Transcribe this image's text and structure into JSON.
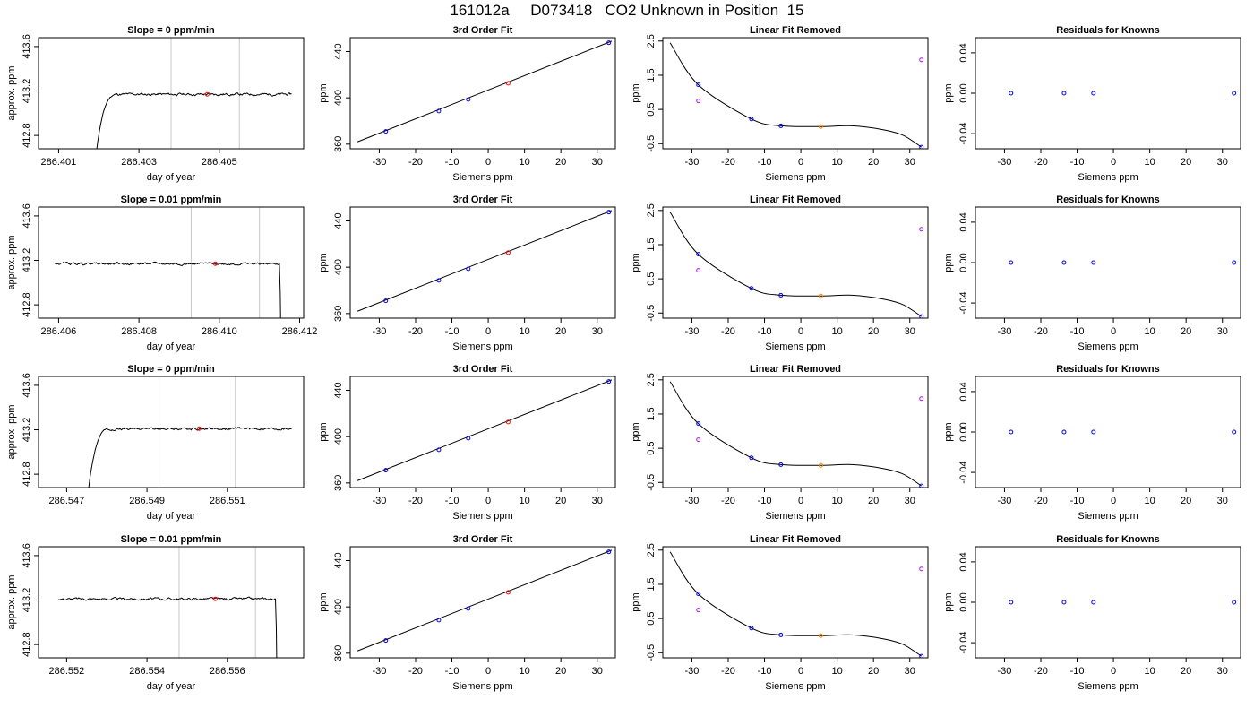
{
  "page_title": "161012a     D073418   CO2 Unknown in Position  15",
  "colors": {
    "trace": "#000000",
    "cursor": "#c8c8c8",
    "known": "#0000ff",
    "unknown": "#ff0000",
    "offset": "#ff8000",
    "excluded": "#a020f0"
  },
  "chart_data": [
    {
      "type": "line",
      "title": "Slope =  0  ppm/min",
      "xlabel": "day of year",
      "ylabel": "approx. ppm",
      "xlim": [
        286.4005,
        286.4071
      ],
      "ylim": [
        412.68,
        413.68
      ],
      "xticks": [
        "286.401",
        "286.403",
        "286.405"
      ],
      "yticks": [
        "412.8",
        "413.2",
        "413.6"
      ],
      "cursor_lines": [
        286.4038,
        286.4055
      ],
      "profile": "rise",
      "rise_start": 286.4019,
      "curve_end": 286.4068,
      "plateau": 413.17,
      "noise": 0.012,
      "marker": {
        "x": 286.4047,
        "y": 413.17
      }
    },
    {
      "type": "scatter",
      "title": "3rd Order Fit",
      "xlabel": "Siemens ppm",
      "ylabel": "ppm",
      "xlim": [
        -38,
        35
      ],
      "ylim": [
        356,
        452
      ],
      "xticks": [
        "-30",
        "-20",
        "-10",
        "0",
        "10",
        "20",
        "30"
      ],
      "yticks": [
        "360",
        "400",
        "440"
      ],
      "fit": {
        "x0": -36,
        "x1": 34,
        "y0": 362,
        "y1": 449
      },
      "points": [
        {
          "x": -28.2,
          "y": 371,
          "c": "known"
        },
        {
          "x": -13.6,
          "y": 388.6,
          "c": "known"
        },
        {
          "x": -5.5,
          "y": 398.6,
          "c": "known"
        },
        {
          "x": 5.5,
          "y": 412.6,
          "c": "unknown"
        },
        {
          "x": 33.2,
          "y": 447.6,
          "c": "known"
        }
      ]
    },
    {
      "type": "scatter",
      "title": "Linear Fit Removed",
      "xlabel": "Siemens ppm",
      "ylabel": "ppm",
      "xlim": [
        -38,
        35
      ],
      "ylim": [
        -0.65,
        2.6
      ],
      "xticks": [
        "-30",
        "-20",
        "-10",
        "0",
        "10",
        "20",
        "30"
      ],
      "yticks": [
        "-0.5",
        "0.5",
        "1.5",
        "2.5"
      ],
      "curve": [
        {
          "x": -36,
          "y": 2.45
        },
        {
          "x": -28.2,
          "y": 1.22
        },
        {
          "x": -13.6,
          "y": 0.22
        },
        {
          "x": -5.5,
          "y": 0.02
        },
        {
          "x": 5.5,
          "y": 0.0
        },
        {
          "x": 14,
          "y": 0.02
        },
        {
          "x": 22,
          "y": -0.08
        },
        {
          "x": 28,
          "y": -0.25
        },
        {
          "x": 33.2,
          "y": -0.6
        }
      ],
      "points": [
        {
          "x": -28.2,
          "y": 1.22,
          "c": "known"
        },
        {
          "x": -28.2,
          "y": 0.75,
          "c": "excluded"
        },
        {
          "x": -13.6,
          "y": 0.22,
          "c": "known"
        },
        {
          "x": -5.5,
          "y": 0.02,
          "c": "known"
        },
        {
          "x": 5.5,
          "y": 0.0,
          "c": "offset"
        },
        {
          "x": 33.2,
          "y": 1.95,
          "c": "excluded"
        },
        {
          "x": 33.2,
          "y": -0.6,
          "c": "known"
        }
      ]
    },
    {
      "type": "scatter",
      "title": "Residuals for Knowns",
      "xlabel": "Siemens ppm",
      "ylabel": "ppm",
      "xlim": [
        -38,
        35
      ],
      "ylim": [
        -0.055,
        0.055
      ],
      "xticks": [
        "-30",
        "-20",
        "-10",
        "0",
        "10",
        "20",
        "30"
      ],
      "yticks": [
        "-0.04",
        "0.00",
        "0.04"
      ],
      "points": [
        {
          "x": -28.2,
          "y": 0.0,
          "c": "known"
        },
        {
          "x": -13.6,
          "y": 0.0,
          "c": "known"
        },
        {
          "x": -5.5,
          "y": 0.0,
          "c": "known"
        },
        {
          "x": 33.2,
          "y": 0.0,
          "c": "known"
        }
      ]
    },
    {
      "type": "line",
      "title": "Slope =  0.01  ppm/min",
      "xlabel": "day of year",
      "ylabel": "approx. ppm",
      "xlim": [
        286.4055,
        286.4121
      ],
      "ylim": [
        412.68,
        413.68
      ],
      "xticks": [
        "286.406",
        "286.408",
        "286.410",
        "286.412"
      ],
      "yticks": [
        "412.8",
        "413.2",
        "413.6"
      ],
      "cursor_lines": [
        286.4093,
        286.411
      ],
      "profile": "drop",
      "curve_start": 286.4059,
      "drop_start": 286.4115,
      "plateau": 413.17,
      "noise": 0.012,
      "marker": {
        "x": 286.4099,
        "y": 413.17
      }
    },
    {
      "type": "scatter",
      "title": "3rd Order Fit",
      "xlabel": "Siemens ppm",
      "ylabel": "ppm",
      "xlim": [
        -38,
        35
      ],
      "ylim": [
        356,
        452
      ],
      "xticks": [
        "-30",
        "-20",
        "-10",
        "0",
        "10",
        "20",
        "30"
      ],
      "yticks": [
        "360",
        "400",
        "440"
      ],
      "fit": {
        "x0": -36,
        "x1": 34,
        "y0": 362,
        "y1": 449
      },
      "points": [
        {
          "x": -28.2,
          "y": 371,
          "c": "known"
        },
        {
          "x": -13.6,
          "y": 388.6,
          "c": "known"
        },
        {
          "x": -5.5,
          "y": 398.6,
          "c": "known"
        },
        {
          "x": 5.5,
          "y": 412.6,
          "c": "unknown"
        },
        {
          "x": 33.2,
          "y": 447.6,
          "c": "known"
        }
      ]
    },
    {
      "type": "scatter",
      "title": "Linear Fit Removed",
      "xlabel": "Siemens ppm",
      "ylabel": "ppm",
      "xlim": [
        -38,
        35
      ],
      "ylim": [
        -0.65,
        2.6
      ],
      "xticks": [
        "-30",
        "-20",
        "-10",
        "0",
        "10",
        "20",
        "30"
      ],
      "yticks": [
        "-0.5",
        "0.5",
        "1.5",
        "2.5"
      ],
      "curve": [
        {
          "x": -36,
          "y": 2.45
        },
        {
          "x": -28.2,
          "y": 1.22
        },
        {
          "x": -13.6,
          "y": 0.22
        },
        {
          "x": -5.5,
          "y": 0.02
        },
        {
          "x": 5.5,
          "y": 0.0
        },
        {
          "x": 14,
          "y": 0.02
        },
        {
          "x": 22,
          "y": -0.08
        },
        {
          "x": 28,
          "y": -0.25
        },
        {
          "x": 33.2,
          "y": -0.6
        }
      ],
      "points": [
        {
          "x": -28.2,
          "y": 1.22,
          "c": "known"
        },
        {
          "x": -28.2,
          "y": 0.75,
          "c": "excluded"
        },
        {
          "x": -13.6,
          "y": 0.22,
          "c": "known"
        },
        {
          "x": -5.5,
          "y": 0.02,
          "c": "known"
        },
        {
          "x": 5.5,
          "y": 0.0,
          "c": "offset"
        },
        {
          "x": 33.2,
          "y": 1.95,
          "c": "excluded"
        },
        {
          "x": 33.2,
          "y": -0.6,
          "c": "known"
        }
      ]
    },
    {
      "type": "scatter",
      "title": "Residuals for Knowns",
      "xlabel": "Siemens ppm",
      "ylabel": "ppm",
      "xlim": [
        -38,
        35
      ],
      "ylim": [
        -0.055,
        0.055
      ],
      "xticks": [
        "-30",
        "-20",
        "-10",
        "0",
        "10",
        "20",
        "30"
      ],
      "yticks": [
        "-0.04",
        "0.00",
        "0.04"
      ],
      "points": [
        {
          "x": -28.2,
          "y": 0.0,
          "c": "known"
        },
        {
          "x": -13.6,
          "y": 0.0,
          "c": "known"
        },
        {
          "x": -5.5,
          "y": 0.0,
          "c": "known"
        },
        {
          "x": 33.2,
          "y": 0.0,
          "c": "known"
        }
      ]
    },
    {
      "type": "line",
      "title": "Slope =  0  ppm/min",
      "xlabel": "day of year",
      "ylabel": "approx. ppm",
      "xlim": [
        286.5463,
        286.5529
      ],
      "ylim": [
        412.68,
        413.68
      ],
      "xticks": [
        "286.547",
        "286.549",
        "286.551"
      ],
      "yticks": [
        "412.8",
        "413.2",
        "413.6"
      ],
      "cursor_lines": [
        286.5493,
        286.5512
      ],
      "profile": "rise",
      "rise_start": 286.5475,
      "curve_end": 286.5526,
      "plateau": 413.21,
      "noise": 0.012,
      "marker": {
        "x": 286.5503,
        "y": 413.21
      }
    },
    {
      "type": "scatter",
      "title": "3rd Order Fit",
      "xlabel": "Siemens ppm",
      "ylabel": "ppm",
      "xlim": [
        -38,
        35
      ],
      "ylim": [
        356,
        452
      ],
      "xticks": [
        "-30",
        "-20",
        "-10",
        "0",
        "10",
        "20",
        "30"
      ],
      "yticks": [
        "360",
        "400",
        "440"
      ],
      "fit": {
        "x0": -36,
        "x1": 34,
        "y0": 362,
        "y1": 449
      },
      "points": [
        {
          "x": -28.2,
          "y": 371,
          "c": "known"
        },
        {
          "x": -13.6,
          "y": 388.6,
          "c": "known"
        },
        {
          "x": -5.5,
          "y": 398.6,
          "c": "known"
        },
        {
          "x": 5.5,
          "y": 412.6,
          "c": "unknown"
        },
        {
          "x": 33.2,
          "y": 447.6,
          "c": "known"
        }
      ]
    },
    {
      "type": "scatter",
      "title": "Linear Fit Removed",
      "xlabel": "Siemens ppm",
      "ylabel": "ppm",
      "xlim": [
        -38,
        35
      ],
      "ylim": [
        -0.65,
        2.6
      ],
      "xticks": [
        "-30",
        "-20",
        "-10",
        "0",
        "10",
        "20",
        "30"
      ],
      "yticks": [
        "-0.5",
        "0.5",
        "1.5",
        "2.5"
      ],
      "curve": [
        {
          "x": -36,
          "y": 2.45
        },
        {
          "x": -28.2,
          "y": 1.22
        },
        {
          "x": -13.6,
          "y": 0.22
        },
        {
          "x": -5.5,
          "y": 0.02
        },
        {
          "x": 5.5,
          "y": 0.0
        },
        {
          "x": 14,
          "y": 0.02
        },
        {
          "x": 22,
          "y": -0.08
        },
        {
          "x": 28,
          "y": -0.25
        },
        {
          "x": 33.2,
          "y": -0.6
        }
      ],
      "points": [
        {
          "x": -28.2,
          "y": 1.22,
          "c": "known"
        },
        {
          "x": -28.2,
          "y": 0.75,
          "c": "excluded"
        },
        {
          "x": -13.6,
          "y": 0.22,
          "c": "known"
        },
        {
          "x": -5.5,
          "y": 0.02,
          "c": "known"
        },
        {
          "x": 5.5,
          "y": 0.0,
          "c": "offset"
        },
        {
          "x": 33.2,
          "y": 1.95,
          "c": "excluded"
        },
        {
          "x": 33.2,
          "y": -0.6,
          "c": "known"
        }
      ]
    },
    {
      "type": "scatter",
      "title": "Residuals for Knowns",
      "xlabel": "Siemens ppm",
      "ylabel": "ppm",
      "xlim": [
        -38,
        35
      ],
      "ylim": [
        -0.055,
        0.055
      ],
      "xticks": [
        "-30",
        "-20",
        "-10",
        "0",
        "10",
        "20",
        "30"
      ],
      "yticks": [
        "-0.04",
        "0.00",
        "0.04"
      ],
      "points": [
        {
          "x": -28.2,
          "y": 0.0,
          "c": "known"
        },
        {
          "x": -13.6,
          "y": 0.0,
          "c": "known"
        },
        {
          "x": -5.5,
          "y": 0.0,
          "c": "known"
        },
        {
          "x": 33.2,
          "y": 0.0,
          "c": "known"
        }
      ]
    },
    {
      "type": "line",
      "title": "Slope =  0.01  ppm/min",
      "xlabel": "day of year",
      "ylabel": "approx. ppm",
      "xlim": [
        286.5513,
        286.5579
      ],
      "ylim": [
        412.68,
        413.68
      ],
      "xticks": [
        "286.552",
        "286.554",
        "286.556"
      ],
      "yticks": [
        "412.8",
        "413.2",
        "413.6"
      ],
      "cursor_lines": [
        286.5548,
        286.5567
      ],
      "profile": "drop",
      "curve_start": 286.5518,
      "drop_start": 286.5572,
      "plateau": 413.21,
      "noise": 0.012,
      "marker": {
        "x": 286.5557,
        "y": 413.21
      }
    },
    {
      "type": "scatter",
      "title": "3rd Order Fit",
      "xlabel": "Siemens ppm",
      "ylabel": "ppm",
      "xlim": [
        -38,
        35
      ],
      "ylim": [
        356,
        452
      ],
      "xticks": [
        "-30",
        "-20",
        "-10",
        "0",
        "10",
        "20",
        "30"
      ],
      "yticks": [
        "360",
        "400",
        "440"
      ],
      "fit": {
        "x0": -36,
        "x1": 34,
        "y0": 362,
        "y1": 449
      },
      "points": [
        {
          "x": -28.2,
          "y": 371,
          "c": "known"
        },
        {
          "x": -13.6,
          "y": 388.6,
          "c": "known"
        },
        {
          "x": -5.5,
          "y": 398.6,
          "c": "known"
        },
        {
          "x": 5.5,
          "y": 412.6,
          "c": "unknown"
        },
        {
          "x": 33.2,
          "y": 447.6,
          "c": "known"
        }
      ]
    },
    {
      "type": "scatter",
      "title": "Linear Fit Removed",
      "xlabel": "Siemens ppm",
      "ylabel": "ppm",
      "xlim": [
        -38,
        35
      ],
      "ylim": [
        -0.65,
        2.6
      ],
      "xticks": [
        "-30",
        "-20",
        "-10",
        "0",
        "10",
        "20",
        "30"
      ],
      "yticks": [
        "-0.5",
        "0.5",
        "1.5",
        "2.5"
      ],
      "curve": [
        {
          "x": -36,
          "y": 2.45
        },
        {
          "x": -28.2,
          "y": 1.22
        },
        {
          "x": -13.6,
          "y": 0.22
        },
        {
          "x": -5.5,
          "y": 0.02
        },
        {
          "x": 5.5,
          "y": 0.0
        },
        {
          "x": 14,
          "y": 0.02
        },
        {
          "x": 22,
          "y": -0.08
        },
        {
          "x": 28,
          "y": -0.25
        },
        {
          "x": 33.2,
          "y": -0.6
        }
      ],
      "points": [
        {
          "x": -28.2,
          "y": 1.22,
          "c": "known"
        },
        {
          "x": -28.2,
          "y": 0.75,
          "c": "excluded"
        },
        {
          "x": -13.6,
          "y": 0.22,
          "c": "known"
        },
        {
          "x": -5.5,
          "y": 0.02,
          "c": "known"
        },
        {
          "x": 5.5,
          "y": 0.0,
          "c": "offset"
        },
        {
          "x": 33.2,
          "y": 1.95,
          "c": "excluded"
        },
        {
          "x": 33.2,
          "y": -0.6,
          "c": "known"
        }
      ]
    },
    {
      "type": "scatter",
      "title": "Residuals for Knowns",
      "xlabel": "Siemens ppm",
      "ylabel": "ppm",
      "xlim": [
        -38,
        35
      ],
      "ylim": [
        -0.055,
        0.055
      ],
      "xticks": [
        "-30",
        "-20",
        "-10",
        "0",
        "10",
        "20",
        "30"
      ],
      "yticks": [
        "-0.04",
        "0.00",
        "0.04"
      ],
      "points": [
        {
          "x": -28.2,
          "y": 0.0,
          "c": "known"
        },
        {
          "x": -13.6,
          "y": 0.0,
          "c": "known"
        },
        {
          "x": -5.5,
          "y": 0.0,
          "c": "known"
        },
        {
          "x": 33.2,
          "y": 0.0,
          "c": "known"
        }
      ]
    }
  ]
}
